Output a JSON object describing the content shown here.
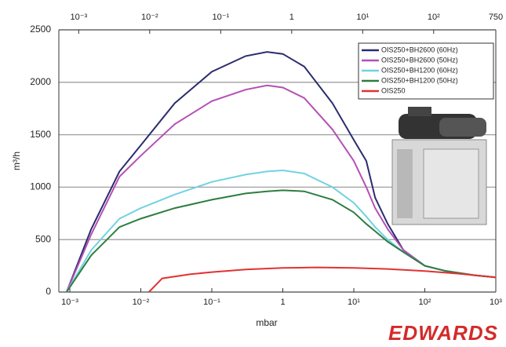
{
  "chart_data": {
    "type": "line",
    "x_label": "mbar",
    "y_label": "m³/h",
    "logo": "EDWARDS",
    "xscale": "log",
    "xlim": [
      0.0007,
      1000
    ],
    "xticks": [
      {
        "value": 0.001,
        "label": "10⁻³"
      },
      {
        "value": 0.01,
        "label": "10⁻²"
      },
      {
        "value": 0.1,
        "label": "10⁻¹"
      },
      1,
      {
        "value": 10,
        "label": "10¹"
      },
      {
        "value": 100,
        "label": "10²"
      },
      {
        "value": 1000,
        "label": "10³"
      }
    ],
    "x2lim": [
      0.000525,
      750
    ],
    "x2ticks": [
      {
        "value": 0.001,
        "label": "10⁻³"
      },
      {
        "value": 0.01,
        "label": "10⁻²"
      },
      {
        "value": 0.1,
        "label": "10⁻¹"
      },
      1,
      {
        "value": 10,
        "label": "10¹"
      },
      {
        "value": 100,
        "label": "10²"
      },
      750
    ],
    "ylim": [
      0,
      2500
    ],
    "yticks": [
      0,
      500,
      1000,
      1500,
      2000,
      2500
    ],
    "grid": true,
    "legend": "upper right",
    "series": [
      {
        "name": "OIS250+BH2600 (60Hz)",
        "color": "#2a2c6e",
        "x": [
          0.0009,
          0.002,
          0.005,
          0.01,
          0.03,
          0.1,
          0.3,
          0.6,
          1,
          2,
          5,
          10,
          15,
          20,
          30,
          50,
          100,
          200,
          500,
          1000
        ],
        "values": [
          0,
          600,
          1150,
          1400,
          1800,
          2100,
          2250,
          2290,
          2270,
          2150,
          1800,
          1450,
          1250,
          900,
          650,
          400,
          250,
          200,
          160,
          140
        ]
      },
      {
        "name": "OIS250+BH2600 (50Hz)",
        "color": "#b450b4",
        "x": [
          0.0009,
          0.002,
          0.005,
          0.01,
          0.03,
          0.1,
          0.3,
          0.6,
          1,
          2,
          5,
          10,
          15,
          20,
          30,
          50,
          100,
          200,
          500,
          1000
        ],
        "values": [
          0,
          550,
          1100,
          1300,
          1600,
          1820,
          1930,
          1970,
          1950,
          1850,
          1550,
          1250,
          1000,
          800,
          600,
          400,
          250,
          200,
          160,
          140
        ]
      },
      {
        "name": "OIS250+BH1200 (60Hz)",
        "color": "#72d2e2",
        "x": [
          0.0009,
          0.002,
          0.005,
          0.01,
          0.03,
          0.1,
          0.3,
          0.6,
          1,
          2,
          5,
          10,
          15,
          20,
          30,
          50,
          100,
          200,
          500,
          1000
        ],
        "values": [
          0,
          400,
          700,
          800,
          930,
          1050,
          1120,
          1150,
          1160,
          1130,
          1000,
          850,
          720,
          620,
          500,
          380,
          250,
          200,
          160,
          140
        ]
      },
      {
        "name": "OIS250+BH1200 (50Hz)",
        "color": "#2e7d40",
        "x": [
          0.0009,
          0.002,
          0.005,
          0.01,
          0.03,
          0.1,
          0.3,
          0.6,
          1,
          2,
          5,
          10,
          15,
          20,
          30,
          50,
          100,
          200,
          500,
          1000
        ],
        "values": [
          0,
          350,
          620,
          700,
          800,
          880,
          940,
          960,
          970,
          960,
          880,
          760,
          650,
          580,
          480,
          380,
          250,
          200,
          160,
          140
        ]
      },
      {
        "name": "OIS250",
        "color": "#e23232",
        "x": [
          0.013,
          0.02,
          0.05,
          0.1,
          0.3,
          1,
          3,
          10,
          30,
          100,
          300,
          1000
        ],
        "values": [
          0,
          130,
          170,
          190,
          215,
          230,
          235,
          230,
          220,
          200,
          175,
          140
        ]
      }
    ]
  }
}
